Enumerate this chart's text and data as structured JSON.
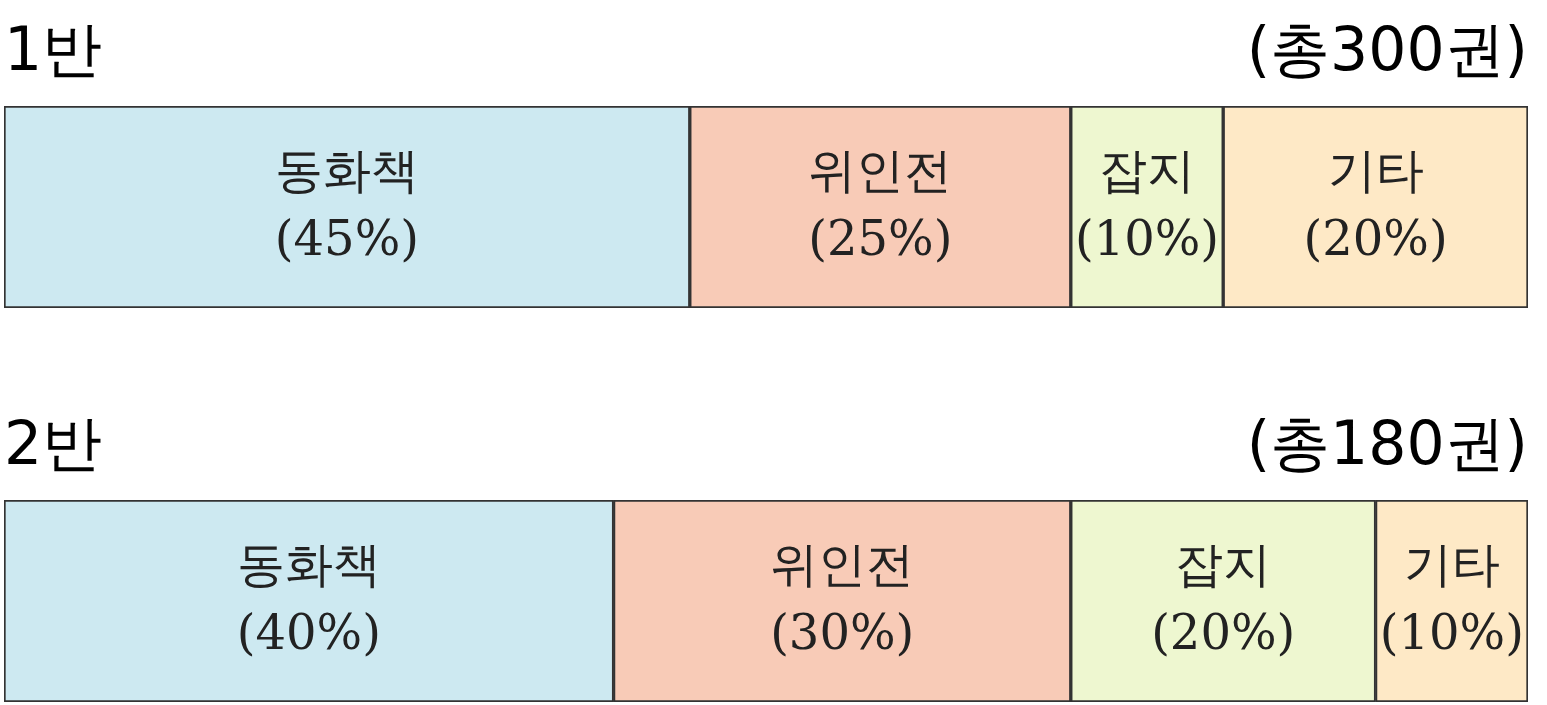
{
  "chart_data": [
    {
      "type": "bar",
      "title": "1반",
      "subtitle": "(총300권)",
      "orientation": "horizontal",
      "stacked": true,
      "categories": [
        null
      ],
      "xlim": [
        0,
        100
      ],
      "tick_labels": false,
      "legend": false,
      "series": [
        {
          "name": "동화책",
          "color": "#cde9f1",
          "values": [
            45
          ],
          "value_labels": [
            "(45%)"
          ]
        },
        {
          "name": "위인전",
          "color": "#f8cbb7",
          "values": [
            25
          ],
          "value_labels": [
            "(25%)"
          ]
        },
        {
          "name": "잡지",
          "color": "#eef7d0",
          "values": [
            10
          ],
          "value_labels": [
            "(10%)"
          ]
        },
        {
          "name": "기타",
          "color": "#fee9c6",
          "values": [
            20
          ],
          "value_labels": [
            "(20%)"
          ]
        }
      ]
    },
    {
      "type": "bar",
      "title": "2반",
      "subtitle": "(총180권)",
      "orientation": "horizontal",
      "stacked": true,
      "categories": [
        null
      ],
      "xlim": [
        0,
        100
      ],
      "tick_labels": false,
      "legend": false,
      "series": [
        {
          "name": "동화책",
          "color": "#cde9f1",
          "values": [
            40
          ],
          "value_labels": [
            "(40%)"
          ]
        },
        {
          "name": "위인전",
          "color": "#f8cbb7",
          "values": [
            30
          ],
          "value_labels": [
            "(30%)"
          ]
        },
        {
          "name": "잡지",
          "color": "#eef7d0",
          "values": [
            20
          ],
          "value_labels": [
            "(20%)"
          ]
        },
        {
          "name": "기타",
          "color": "#fee9c6",
          "values": [
            10
          ],
          "value_labels": [
            "(10%)"
          ]
        }
      ]
    }
  ]
}
